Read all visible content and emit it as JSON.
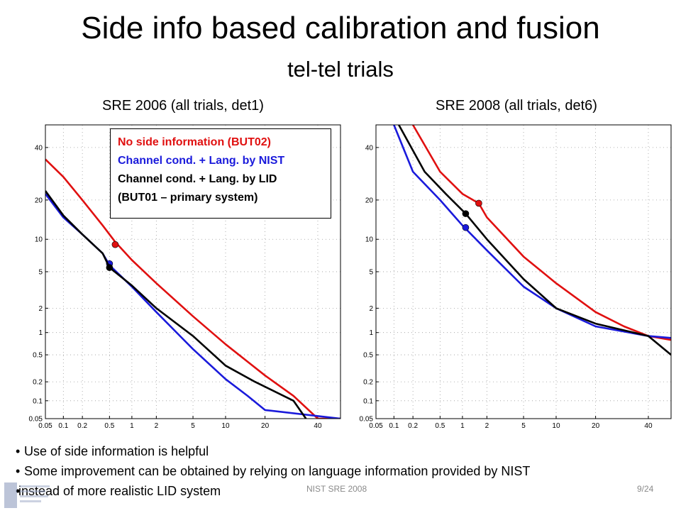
{
  "slide": {
    "title": "Side info based calibration and fusion",
    "subtitle": "tel-tel trials",
    "bullets": [
      "Use of side information is helpful",
      "Some improvement can be obtained by relying on language information provided by NIST",
      "instead of more realistic LID system"
    ],
    "footer_center": "NIST SRE 2008",
    "footer_page": "9/24"
  },
  "legend": {
    "entries": [
      {
        "label": "No side information (BUT02)",
        "color": "#e01010"
      },
      {
        "label": "Channel cond. + Lang. by NIST",
        "color": "#1a1adb"
      },
      {
        "label": "Channel cond. + Lang. by LID",
        "color": "#000000"
      },
      {
        "label": "(BUT01 – primary system)",
        "color": "#000000"
      }
    ]
  },
  "chart_data": [
    {
      "type": "line",
      "scale": "probit",
      "title": "SRE 2006 (all trials, det1)",
      "grid": true,
      "legend_position": "top-right",
      "xlim": [
        0.05,
        50
      ],
      "ylim": [
        0.05,
        50
      ],
      "x_ticks": [
        0.05,
        0.1,
        0.2,
        0.5,
        1,
        2,
        5,
        10,
        20,
        40
      ],
      "x_tick_labels": [
        "0.05",
        "0.1",
        "0.2",
        "0.5",
        "1",
        "2",
        "5",
        "10",
        "20",
        "40"
      ],
      "y_ticks": [
        0.05,
        0.1,
        0.2,
        0.5,
        1,
        2,
        5,
        10,
        20,
        40
      ],
      "y_tick_labels": [
        "0.05",
        "0.1",
        "0.2",
        "0.5",
        "1",
        "2",
        "5",
        "10",
        "20",
        "40"
      ],
      "series": [
        {
          "color": "#e01010",
          "points": [
            [
              0.05,
              35
            ],
            [
              0.1,
              28
            ],
            [
              0.2,
              20
            ],
            [
              0.4,
              13
            ],
            [
              0.6,
              9.5
            ],
            [
              1,
              6.5
            ],
            [
              2,
              3.8
            ],
            [
              5,
              1.6
            ],
            [
              10,
              0.7
            ],
            [
              20,
              0.25
            ],
            [
              30,
              0.12
            ],
            [
              40,
              0.05
            ],
            [
              50,
              0.05
            ]
          ],
          "marker": [
            0.6,
            9.0
          ]
        },
        {
          "color": "#1a1adb",
          "points": [
            [
              0.05,
              22
            ],
            [
              0.1,
              15
            ],
            [
              0.2,
              11
            ],
            [
              0.4,
              7.5
            ],
            [
              0.5,
              5.8
            ],
            [
              1,
              3.5
            ],
            [
              2,
              1.8
            ],
            [
              5,
              0.6
            ],
            [
              10,
              0.22
            ],
            [
              15,
              0.12
            ],
            [
              20,
              0.07
            ],
            [
              50,
              0.05
            ]
          ],
          "marker": [
            0.5,
            6.0
          ]
        },
        {
          "color": "#000000",
          "points": [
            [
              0.05,
              23
            ],
            [
              0.1,
              15.5
            ],
            [
              0.2,
              11
            ],
            [
              0.4,
              7.5
            ],
            [
              0.5,
              5.5
            ],
            [
              1,
              3.6
            ],
            [
              2,
              2.0
            ],
            [
              5,
              0.9
            ],
            [
              10,
              0.35
            ],
            [
              17,
              0.2
            ],
            [
              30,
              0.1
            ],
            [
              35,
              0.05
            ]
          ],
          "marker": [
            0.5,
            5.5
          ]
        }
      ]
    },
    {
      "type": "line",
      "scale": "probit",
      "title": "SRE 2008 (all trials, det6)",
      "grid": true,
      "xlim": [
        0.05,
        50
      ],
      "ylim": [
        0.05,
        50
      ],
      "x_ticks": [
        0.05,
        0.1,
        0.2,
        0.5,
        1,
        2,
        5,
        10,
        20,
        40
      ],
      "x_tick_labels": [
        "0.05",
        "0.1",
        "0.2",
        "0.5",
        "1",
        "2",
        "5",
        "10",
        "20",
        "40"
      ],
      "y_ticks": [
        0.05,
        0.1,
        0.2,
        0.5,
        1,
        2,
        5,
        10,
        20,
        40
      ],
      "y_tick_labels": [
        "0.05",
        "0.1",
        "0.2",
        "0.5",
        "1",
        "2",
        "5",
        "10",
        "20",
        "40"
      ],
      "series": [
        {
          "color": "#e01010",
          "points": [
            [
              0.2,
              50
            ],
            [
              0.5,
              30
            ],
            [
              1,
              22
            ],
            [
              1.6,
              19
            ],
            [
              2,
              15
            ],
            [
              5,
              7
            ],
            [
              10,
              3.8
            ],
            [
              20,
              1.8
            ],
            [
              30,
              1.2
            ],
            [
              40,
              0.9
            ],
            [
              50,
              0.8
            ]
          ],
          "marker": [
            1.6,
            19
          ]
        },
        {
          "color": "#1a1adb",
          "points": [
            [
              0.1,
              50
            ],
            [
              0.2,
              30
            ],
            [
              0.5,
              20
            ],
            [
              1,
              13
            ],
            [
              2,
              8
            ],
            [
              5,
              3.5
            ],
            [
              10,
              2.0
            ],
            [
              20,
              1.2
            ],
            [
              40,
              0.9
            ],
            [
              50,
              0.85
            ]
          ],
          "marker": [
            1.1,
            12.5
          ]
        },
        {
          "color": "#000000",
          "points": [
            [
              0.12,
              50
            ],
            [
              0.3,
              30
            ],
            [
              0.6,
              22
            ],
            [
              1.1,
              16
            ],
            [
              2,
              10
            ],
            [
              5,
              4.2
            ],
            [
              10,
              2.0
            ],
            [
              20,
              1.3
            ],
            [
              40,
              0.9
            ],
            [
              50,
              0.5
            ]
          ],
          "marker": [
            1.1,
            16
          ]
        }
      ]
    }
  ]
}
